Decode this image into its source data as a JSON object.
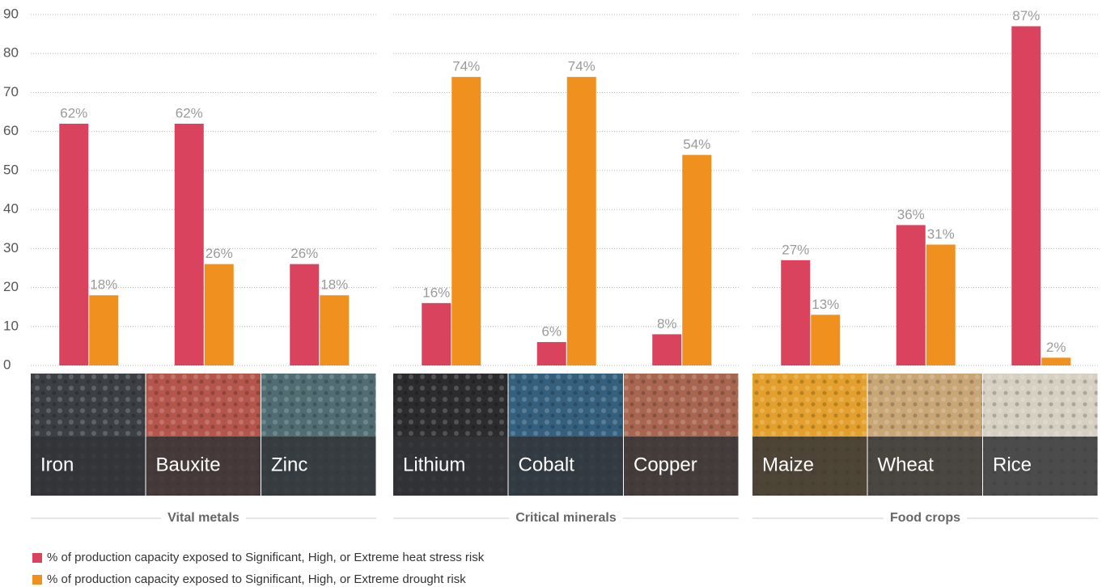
{
  "chart_data": {
    "type": "bar",
    "groups": [
      {
        "name": "Vital metals",
        "categories": [
          "Iron",
          "Bauxite",
          "Zinc"
        ]
      },
      {
        "name": "Critical minerals",
        "categories": [
          "Lithium",
          "Cobalt",
          "Copper"
        ]
      },
      {
        "name": "Food crops",
        "categories": [
          "Maize",
          "Wheat",
          "Rice"
        ]
      }
    ],
    "series": [
      {
        "name": "% of production capacity exposed to Significant, High, or Extreme heat stress risk",
        "color": "#d9435e",
        "values": [
          62,
          62,
          26,
          16,
          6,
          8,
          27,
          36,
          87
        ],
        "value_labels": [
          "62%",
          "62%",
          "26%",
          "16%",
          "6%",
          "8%",
          "27%",
          "36%",
          "87%"
        ]
      },
      {
        "name": "% of production capacity exposed to Significant, High, or Extreme drought risk",
        "color": "#f0901e",
        "values": [
          18,
          26,
          18,
          74,
          74,
          54,
          13,
          31,
          2
        ],
        "value_labels": [
          "18%",
          "26%",
          "18%",
          "74%",
          "74%",
          "54%",
          "13%",
          "31%",
          "2%"
        ]
      }
    ],
    "ylim": [
      0,
      90
    ],
    "yticks": [
      0,
      10,
      20,
      30,
      40,
      50,
      60,
      70,
      80,
      90
    ],
    "grid": true
  }
}
